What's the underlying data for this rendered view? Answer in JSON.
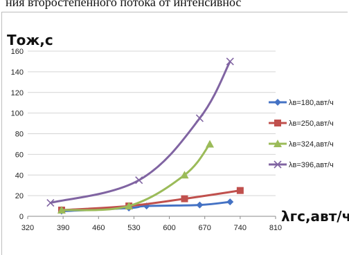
{
  "caption": "ния второстепенного потока от интенсивнос",
  "chart_data": {
    "type": "line",
    "ylabel": "Тож,с",
    "xlabel": "λгс,авт/ч",
    "xlim": [
      320,
      810
    ],
    "ylim": [
      0,
      160
    ],
    "xticks": [
      320,
      390,
      460,
      530,
      600,
      670,
      740,
      810
    ],
    "yticks": [
      0,
      20,
      40,
      60,
      80,
      100,
      120,
      140,
      160
    ],
    "grid": "horizontal",
    "legend_position": "right",
    "series": [
      {
        "name": "λв=180,авт/ч",
        "color": "#4472C4",
        "marker": "diamond",
        "x": [
          387,
          520,
          555,
          660,
          720
        ],
        "y": [
          5,
          8,
          10,
          11,
          14
        ]
      },
      {
        "name": "λв=250,авт/ч",
        "color": "#C0504D",
        "marker": "square",
        "x": [
          387,
          520,
          630,
          740
        ],
        "y": [
          6,
          10,
          17,
          25
        ]
      },
      {
        "name": "λв=324,авт/ч",
        "color": "#9BBB59",
        "marker": "triangle",
        "x": [
          387,
          520,
          630,
          680
        ],
        "y": [
          6,
          10,
          40,
          70
        ]
      },
      {
        "name": "λв=396,авт/ч",
        "color": "#8064A2",
        "marker": "x",
        "x": [
          365,
          540,
          660,
          720
        ],
        "y": [
          13,
          35,
          95,
          150
        ]
      }
    ]
  }
}
